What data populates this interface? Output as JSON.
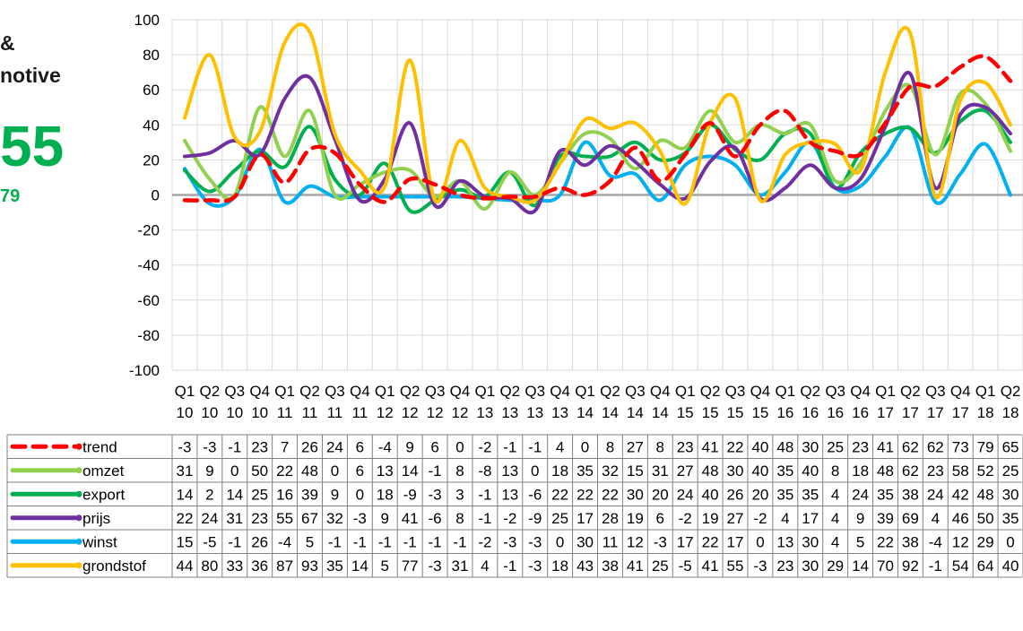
{
  "sidebar": {
    "title_line1": "&",
    "title_line2": "notive",
    "big_value": "55",
    "sub_value": "79",
    "accent_color": "#00b050"
  },
  "chart_data": {
    "type": "line",
    "ylim": [
      -100,
      100
    ],
    "yticks": [
      -100,
      -80,
      -60,
      -40,
      -20,
      0,
      20,
      40,
      60,
      80,
      100
    ],
    "grid": true,
    "legend": "data-table-left",
    "quarters": [
      "Q1",
      "Q2",
      "Q3",
      "Q4",
      "Q1",
      "Q2",
      "Q3",
      "Q4",
      "Q1",
      "Q2",
      "Q3",
      "Q4",
      "Q1",
      "Q2",
      "Q3",
      "Q4",
      "Q1",
      "Q2",
      "Q3",
      "Q4",
      "Q1",
      "Q2",
      "Q3",
      "Q4",
      "Q1",
      "Q2",
      "Q3",
      "Q4",
      "Q1",
      "Q2",
      "Q3",
      "Q4",
      "Q1",
      "Q2"
    ],
    "years": [
      "10",
      "10",
      "10",
      "10",
      "11",
      "11",
      "11",
      "11",
      "12",
      "12",
      "12",
      "12",
      "13",
      "13",
      "13",
      "13",
      "14",
      "14",
      "14",
      "14",
      "15",
      "15",
      "15",
      "15",
      "16",
      "16",
      "16",
      "16",
      "17",
      "17",
      "17",
      "17",
      "18",
      "18"
    ],
    "series": [
      {
        "name": "trend",
        "color": "#ff0000",
        "dashed": true,
        "values": [
          -3,
          -3,
          -1,
          23,
          7,
          26,
          24,
          6,
          -4,
          9,
          6,
          0,
          -2,
          -1,
          -1,
          4,
          0,
          8,
          27,
          8,
          23,
          41,
          22,
          40,
          48,
          30,
          25,
          23,
          41,
          62,
          62,
          73,
          79,
          65
        ]
      },
      {
        "name": "omzet",
        "color": "#92d050",
        "dashed": false,
        "values": [
          31,
          9,
          0,
          50,
          22,
          48,
          0,
          6,
          13,
          14,
          -1,
          8,
          -8,
          13,
          0,
          18,
          35,
          32,
          15,
          31,
          27,
          48,
          30,
          40,
          35,
          40,
          8,
          18,
          48,
          62,
          23,
          58,
          52,
          25
        ]
      },
      {
        "name": "export",
        "color": "#00b050",
        "dashed": false,
        "values": [
          14,
          2,
          14,
          25,
          16,
          39,
          9,
          0,
          18,
          -9,
          -3,
          3,
          -1,
          13,
          -6,
          22,
          22,
          22,
          30,
          20,
          24,
          40,
          26,
          20,
          35,
          35,
          4,
          24,
          35,
          38,
          24,
          42,
          48,
          30
        ]
      },
      {
        "name": "prijs",
        "color": "#7030a0",
        "dashed": false,
        "values": [
          22,
          24,
          31,
          23,
          55,
          67,
          32,
          -3,
          9,
          41,
          -6,
          8,
          -1,
          -2,
          -9,
          25,
          17,
          28,
          19,
          6,
          -2,
          19,
          27,
          -2,
          4,
          17,
          4,
          9,
          39,
          69,
          4,
          46,
          50,
          35
        ]
      },
      {
        "name": "winst",
        "color": "#00b0f0",
        "dashed": false,
        "values": [
          15,
          -5,
          -1,
          26,
          -4,
          5,
          -1,
          -1,
          -1,
          -1,
          -1,
          -1,
          -2,
          -3,
          -3,
          0,
          30,
          11,
          12,
          -3,
          17,
          22,
          17,
          0,
          13,
          30,
          4,
          5,
          22,
          38,
          -4,
          12,
          29,
          0
        ]
      },
      {
        "name": "grondstof",
        "color": "#ffc000",
        "dashed": false,
        "values": [
          44,
          80,
          33,
          36,
          87,
          93,
          35,
          14,
          5,
          77,
          -3,
          31,
          4,
          -1,
          -3,
          18,
          43,
          38,
          41,
          25,
          -5,
          41,
          55,
          -3,
          23,
          30,
          29,
          14,
          70,
          92,
          -1,
          54,
          64,
          40
        ]
      }
    ]
  }
}
